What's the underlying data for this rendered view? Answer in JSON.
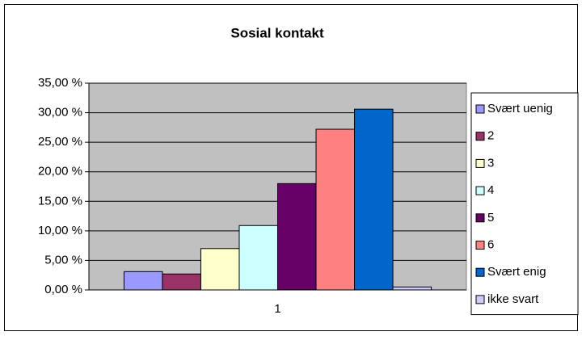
{
  "chart_data": {
    "type": "bar",
    "title": "Sosial kontakt",
    "categories": [
      "1"
    ],
    "series": [
      {
        "name": "Svært uenig",
        "color": "#9999ff",
        "values": [
          3.1
        ]
      },
      {
        "name": "2",
        "color": "#993366",
        "values": [
          2.7
        ]
      },
      {
        "name": "3",
        "color": "#ffffcc",
        "values": [
          7.0
        ]
      },
      {
        "name": "4",
        "color": "#ccffff",
        "values": [
          10.9
        ]
      },
      {
        "name": "5",
        "color": "#660066",
        "values": [
          18.0
        ]
      },
      {
        "name": "6",
        "color": "#ff8080",
        "values": [
          27.2
        ]
      },
      {
        "name": "Svært enig",
        "color": "#0066cc",
        "values": [
          30.6
        ]
      },
      {
        "name": "ikke svart",
        "color": "#ccccff",
        "values": [
          0.5
        ]
      }
    ],
    "ylim": [
      0,
      35
    ],
    "yticks": [
      {
        "value": 0,
        "label": "0,00 %"
      },
      {
        "value": 5,
        "label": "5,00 %"
      },
      {
        "value": 10,
        "label": "10,00 %"
      },
      {
        "value": 15,
        "label": "15,00 %"
      },
      {
        "value": 20,
        "label": "20,00 %"
      },
      {
        "value": 25,
        "label": "25,00 %"
      },
      {
        "value": 30,
        "label": "30,00 %"
      },
      {
        "value": 35,
        "label": "35,00 %"
      }
    ],
    "grid": true,
    "plot_background": "#c0c0c0",
    "legend": "right"
  }
}
